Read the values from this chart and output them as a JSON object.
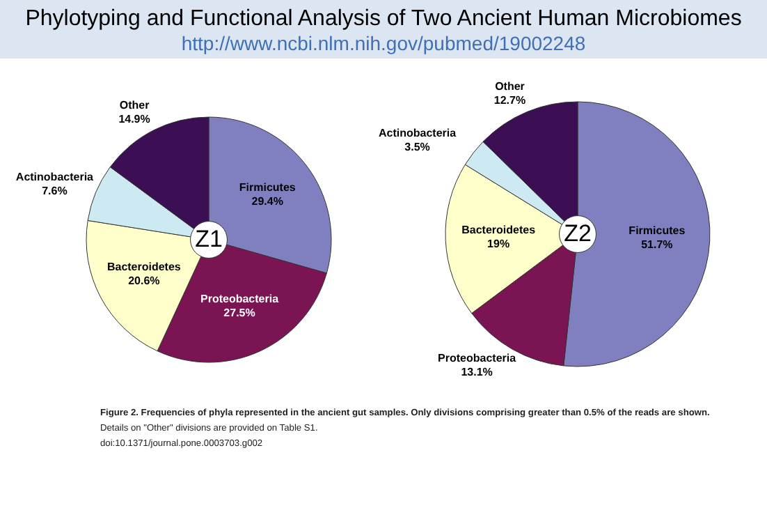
{
  "chart_data": [
    {
      "type": "pie",
      "title": "Phylotyping and Functional Analysis of Two Ancient Human Microbiomes",
      "subtitle": "http://www.ncbi.nlm.nih.gov/pubmed/19002248",
      "categories": [
        "Firmicutes",
        "Proteobacteria",
        "Bacteroidetes",
        "Actinobacteria",
        "Other"
      ],
      "values": [
        29.4,
        27.5,
        20.6,
        7.6,
        14.9
      ],
      "value_labels": [
        "29.4%",
        "27.5%",
        "20.6%",
        "7.6%",
        "14.9%"
      ],
      "colors": [
        "#8080c0",
        "#7a1452",
        "#ffffcc",
        "#cdeaf2",
        "#3c0f55"
      ],
      "annotations": [
        "Z1",
        "Figure 2. Frequencies of phyla represented in the ancient gut samples. Only divisions comprising greater than 0.5% of the reads are shown.",
        "Details on \"Other\" divisions are provided on Table S1.",
        "doi:10.1371/journal.pone.0003703.g002"
      ]
    },
    {
      "type": "pie",
      "categories": [
        "Firmicutes",
        "Proteobacteria",
        "Bacteroidetes",
        "Actinobacteria",
        "Other"
      ],
      "values": [
        51.7,
        13.1,
        19,
        3.5,
        12.7
      ],
      "value_labels": [
        "51.7%",
        "13.1%",
        "19%",
        "3.5%",
        "12.7%"
      ],
      "colors": [
        "#8080c0",
        "#7a1452",
        "#ffffcc",
        "#cdeaf2",
        "#3c0f55"
      ],
      "annotations": [
        "Z2"
      ]
    }
  ]
}
